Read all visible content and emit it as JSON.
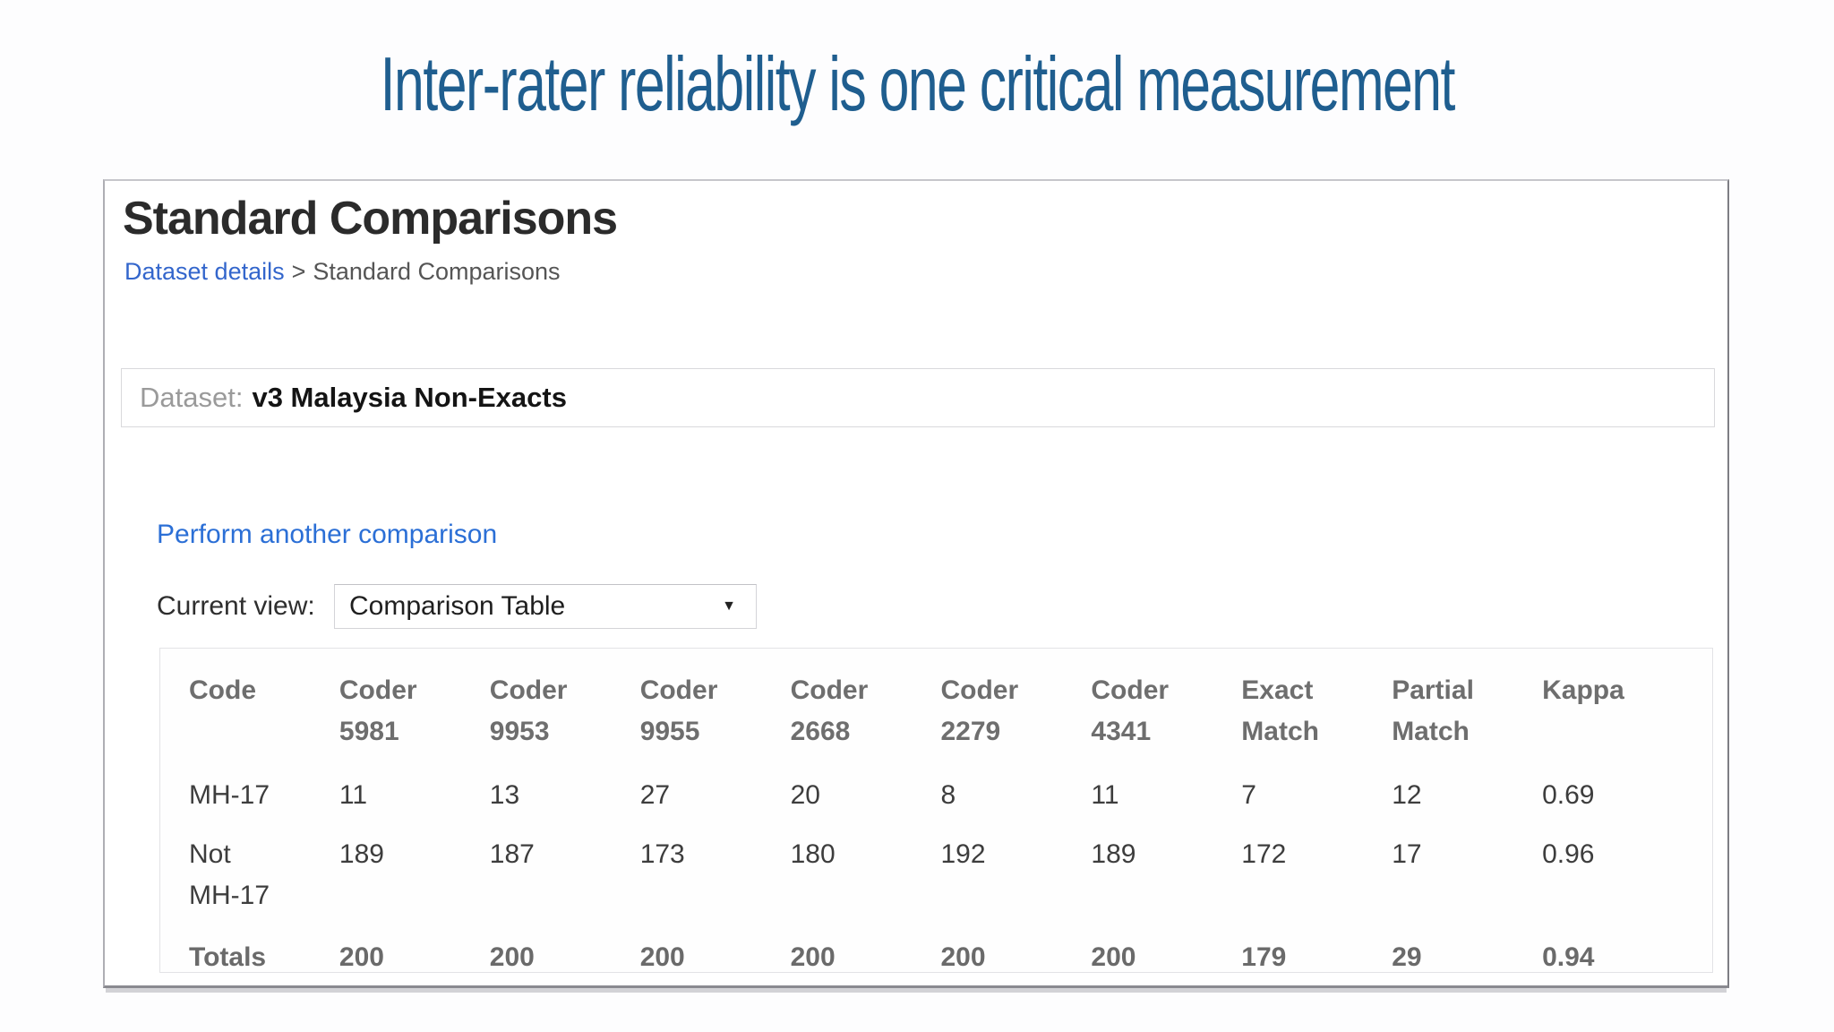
{
  "slide": {
    "title": "Inter-rater reliability is one critical measurement",
    "title_color": "#1f5e8f"
  },
  "panel": {
    "heading": "Standard Comparisons",
    "breadcrumb": {
      "link": "Dataset details",
      "separator": ">",
      "current": "Standard Comparisons"
    },
    "dataset": {
      "label": "Dataset:",
      "value": "v3 Malaysia Non-Exacts"
    },
    "compare_link": "Perform another comparison",
    "current_view": {
      "label": "Current view:",
      "selected": "Comparison Table",
      "caret_icon": "▼"
    }
  },
  "table": {
    "headers": [
      "Code",
      "Coder\n5981",
      "Coder\n9953",
      "Coder\n9955",
      "Coder\n2668",
      "Coder\n2279",
      "Coder\n4341",
      "Exact\nMatch",
      "Partial\nMatch",
      "Kappa"
    ],
    "rows": [
      {
        "cells": [
          "MH-17",
          "11",
          "13",
          "27",
          "20",
          "8",
          "11",
          "7",
          "12",
          "0.69"
        ]
      },
      {
        "cells": [
          "Not\nMH-17",
          "189",
          "187",
          "173",
          "180",
          "192",
          "189",
          "172",
          "17",
          "0.96"
        ]
      },
      {
        "cells": [
          "Totals",
          "200",
          "200",
          "200",
          "200",
          "200",
          "200",
          "179",
          "29",
          "0.94"
        ]
      }
    ]
  },
  "colors": {
    "title_blue": "#1f5e8f",
    "link_blue": "#2b6fd6",
    "breadcrumb_link_blue": "#3366cc",
    "header_gray": "#6e6e6e",
    "body_text": "#3d3d3d",
    "panel_border": "#8a8a90"
  }
}
